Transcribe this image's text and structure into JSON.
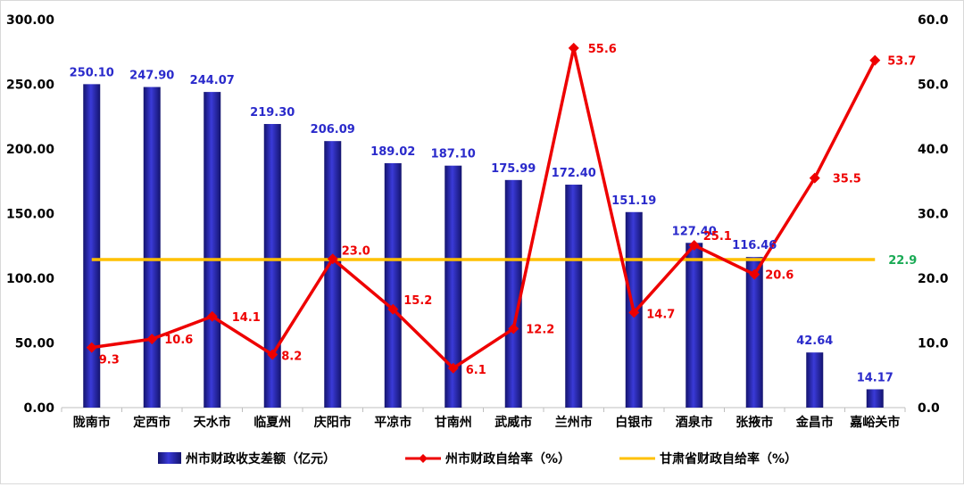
{
  "chart_data": {
    "type": "bar",
    "categories": [
      "陇南市",
      "定西市",
      "天水市",
      "临夏州",
      "庆阳市",
      "平凉市",
      "甘南州",
      "武威市",
      "兰州市",
      "白银市",
      "酒泉市",
      "张掖市",
      "金昌市",
      "嘉峪关市"
    ],
    "series": [
      {
        "name": "州市财政收支差额（亿元）",
        "type": "bar",
        "axis": "left",
        "color": "#2222aa",
        "values": [
          250.1,
          247.9,
          244.07,
          219.3,
          206.09,
          189.02,
          187.1,
          175.99,
          172.4,
          151.19,
          127.4,
          116.46,
          42.64,
          14.17
        ],
        "labels": [
          "250.10",
          "247.90",
          "244.07",
          "219.30",
          "206.09",
          "189.02",
          "187.10",
          "175.99",
          "172.40",
          "151.19",
          "127.40",
          "116.46",
          "42.64",
          "14.17"
        ]
      },
      {
        "name": "州市财政自给率（%）",
        "type": "line",
        "axis": "right",
        "color": "#ee0000",
        "values": [
          9.3,
          10.6,
          14.1,
          8.2,
          23.0,
          15.2,
          6.1,
          12.2,
          55.6,
          14.7,
          25.1,
          20.6,
          35.5,
          53.7
        ],
        "labels": [
          "9.3",
          "10.6",
          "14.1",
          "8.2",
          "23.0",
          "15.2",
          "6.1",
          "12.2",
          "55.6",
          "14.7",
          "25.1",
          "20.6",
          "35.5",
          "53.7"
        ]
      },
      {
        "name": "甘肃省财政自给率（%）",
        "type": "line",
        "axis": "right",
        "color": "#ffc000",
        "value": 22.9,
        "label": "22.9"
      }
    ],
    "y_left": {
      "lim": [
        0,
        300
      ],
      "ticks": [
        "0.00",
        "50.00",
        "100.00",
        "150.00",
        "200.00",
        "250.00",
        "300.00"
      ]
    },
    "y_right": {
      "lim": [
        0,
        60
      ],
      "ticks": [
        "0.0",
        "10.0",
        "20.0",
        "30.0",
        "40.0",
        "50.0",
        "60.0"
      ]
    },
    "grid": false,
    "legend": "bottom"
  }
}
